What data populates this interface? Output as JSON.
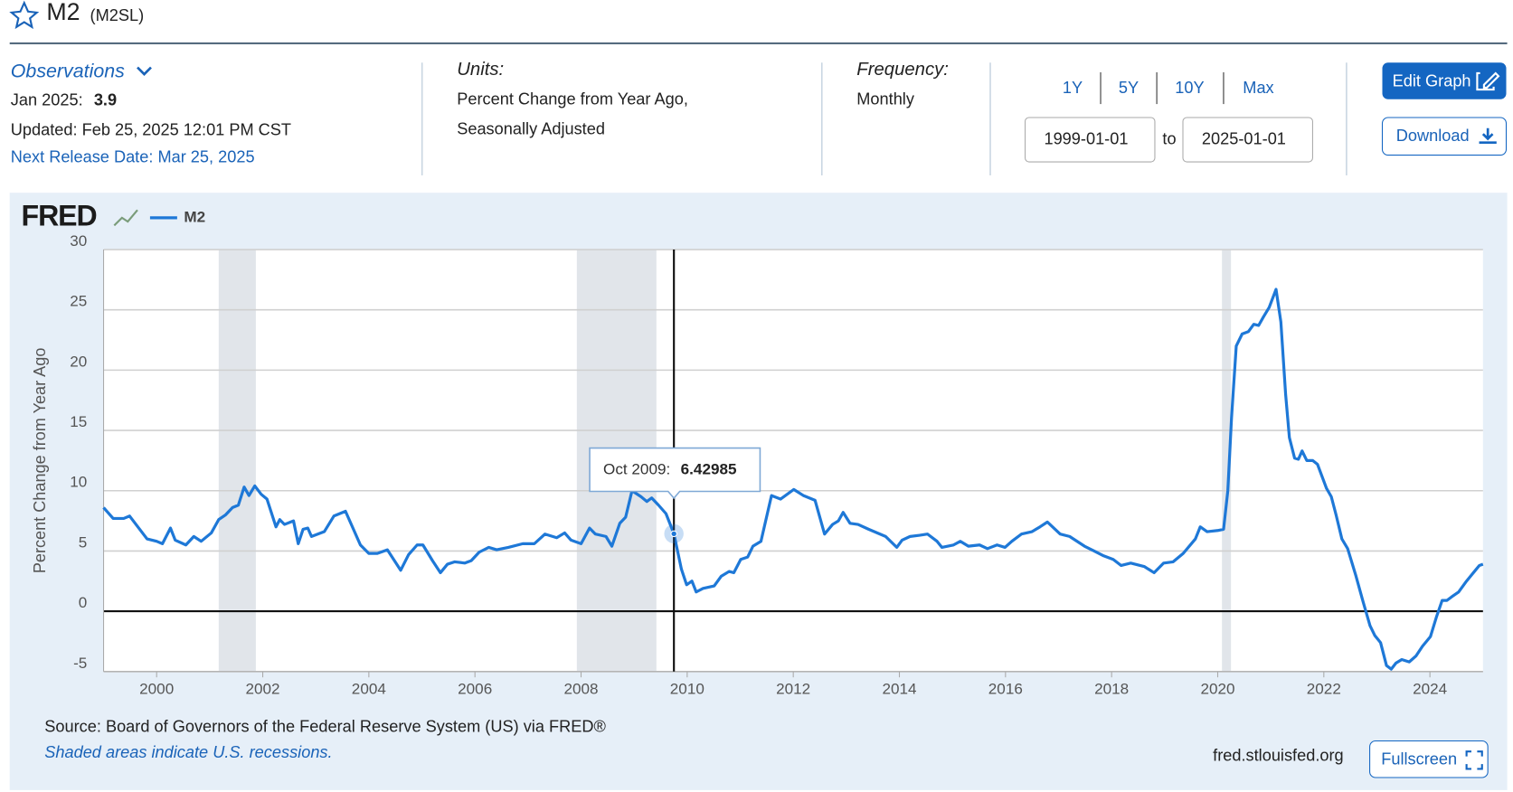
{
  "header": {
    "title": "M2",
    "series_id": "(M2SL)"
  },
  "observations": {
    "label": "Observations",
    "latest_date": "Jan 2025:",
    "latest_value": 3.9,
    "updated": "Updated: Feb 25, 2025 12:01 PM CST",
    "next_release": "Next Release Date: Mar 25, 2025"
  },
  "units": {
    "label": "Units:",
    "lines": [
      "Percent Change from Year Ago,",
      "Seasonally Adjusted"
    ]
  },
  "frequency": {
    "label": "Frequency:",
    "value": "Monthly"
  },
  "date_range": {
    "presets": [
      "1Y",
      "5Y",
      "10Y",
      "Max"
    ],
    "start": "1999-01-01",
    "separator": "to",
    "end": "2025-01-01"
  },
  "buttons": {
    "edit": "Edit Graph",
    "download": "Download",
    "fullscreen": "Fullscreen"
  },
  "chart_data": {
    "type": "line",
    "logo": "FRED",
    "y_label": "Percent Change from Year Ago",
    "xlim": [
      1999,
      2025
    ],
    "xticks": [
      2000,
      2002,
      2004,
      2006,
      2008,
      2010,
      2012,
      2014,
      2016,
      2018,
      2020,
      2022,
      2024
    ],
    "ylim": [
      -5,
      30
    ],
    "yticks": [
      30,
      25,
      20,
      15,
      10,
      5,
      0,
      -5
    ],
    "grid": true,
    "recessions": [
      [
        2001.17,
        2001.87
      ],
      [
        2007.92,
        2009.42
      ],
      [
        2020.08,
        2020.25
      ]
    ],
    "x": [
      1999.0,
      1999.18,
      1999.38,
      1999.49,
      1999.82,
      2000.0,
      2000.11,
      2000.26,
      2000.35,
      2000.55,
      2000.7,
      2000.84,
      2001.03,
      2001.17,
      2001.3,
      2001.43,
      2001.54,
      2001.65,
      2001.74,
      2001.85,
      2001.97,
      2002.08,
      2002.25,
      2002.32,
      2002.41,
      2002.58,
      2002.67,
      2002.76,
      2002.85,
      2002.92,
      2003.16,
      2003.34,
      2003.56,
      2003.84,
      2004.0,
      2004.16,
      2004.35,
      2004.6,
      2004.75,
      2004.91,
      2005.02,
      2005.2,
      2005.35,
      2005.48,
      2005.62,
      2005.81,
      2005.93,
      2006.08,
      2006.26,
      2006.41,
      2006.63,
      2006.9,
      2007.12,
      2007.32,
      2007.54,
      2007.69,
      2007.81,
      2008.0,
      2008.16,
      2008.27,
      2008.47,
      2008.58,
      2008.73,
      2008.84,
      2008.96,
      2009.13,
      2009.24,
      2009.33,
      2009.46,
      2009.6,
      2009.75,
      2009.89,
      2009.99,
      2010.09,
      2010.17,
      2010.3,
      2010.51,
      2010.64,
      2010.79,
      2010.88,
      2011.01,
      2011.14,
      2011.24,
      2011.39,
      2011.59,
      2011.76,
      2012.01,
      2012.19,
      2012.41,
      2012.59,
      2012.74,
      2012.85,
      2012.94,
      2013.07,
      2013.22,
      2013.42,
      2013.74,
      2013.95,
      2014.05,
      2014.2,
      2014.38,
      2014.53,
      2014.71,
      2014.8,
      2015.02,
      2015.15,
      2015.3,
      2015.51,
      2015.66,
      2015.84,
      2015.99,
      2016.12,
      2016.3,
      2016.5,
      2016.65,
      2016.79,
      2017.03,
      2017.21,
      2017.49,
      2017.67,
      2017.85,
      2018.03,
      2018.18,
      2018.36,
      2018.62,
      2018.8,
      2018.98,
      2019.16,
      2019.35,
      2019.58,
      2019.67,
      2019.8,
      2020.0,
      2020.11,
      2020.19,
      2020.26,
      2020.35,
      2020.46,
      2020.58,
      2020.68,
      2020.77,
      2020.86,
      2020.97,
      2021.1,
      2021.19,
      2021.28,
      2021.35,
      2021.45,
      2021.52,
      2021.59,
      2021.68,
      2021.79,
      2021.88,
      2022.05,
      2022.14,
      2022.23,
      2022.34,
      2022.45,
      2022.6,
      2022.74,
      2022.87,
      2022.96,
      2023.07,
      2023.18,
      2023.27,
      2023.36,
      2023.47,
      2023.61,
      2023.74,
      2023.86,
      2024.01,
      2024.12,
      2024.23,
      2024.32,
      2024.41,
      2024.54,
      2024.69,
      2024.82,
      2024.93,
      2025.0
    ],
    "series": [
      {
        "name": "M2",
        "color": "#1e78d7",
        "values": [
          8.6,
          7.7,
          7.7,
          7.9,
          6.0,
          5.8,
          5.6,
          6.9,
          5.9,
          5.5,
          6.2,
          5.8,
          6.5,
          7.6,
          8.0,
          8.6,
          8.8,
          10.3,
          9.6,
          10.4,
          9.7,
          9.3,
          7.0,
          7.6,
          7.2,
          7.5,
          5.6,
          6.8,
          6.9,
          6.2,
          6.6,
          7.9,
          8.3,
          5.5,
          4.8,
          4.8,
          5.1,
          3.4,
          4.7,
          5.5,
          5.5,
          4.2,
          3.2,
          3.9,
          4.1,
          4.0,
          4.2,
          4.9,
          5.3,
          5.1,
          5.3,
          5.6,
          5.6,
          6.4,
          6.1,
          6.5,
          5.9,
          5.6,
          6.9,
          6.4,
          6.2,
          5.4,
          7.3,
          7.8,
          10.0,
          9.5,
          9.1,
          9.4,
          8.8,
          8.1,
          6.42985,
          3.5,
          2.2,
          2.5,
          1.6,
          1.9,
          2.1,
          2.9,
          3.3,
          3.2,
          4.3,
          4.5,
          5.4,
          5.8,
          9.6,
          9.3,
          10.1,
          9.6,
          9.2,
          6.4,
          7.2,
          7.5,
          8.2,
          7.3,
          7.2,
          6.8,
          6.2,
          5.3,
          5.9,
          6.2,
          6.3,
          6.4,
          5.8,
          5.3,
          5.5,
          5.8,
          5.4,
          5.5,
          5.2,
          5.5,
          5.3,
          5.8,
          6.4,
          6.6,
          7.0,
          7.4,
          6.4,
          6.2,
          5.4,
          5.0,
          4.6,
          4.3,
          3.8,
          4.0,
          3.7,
          3.2,
          4.0,
          4.1,
          4.8,
          6.0,
          7.0,
          6.6,
          6.7,
          6.8,
          10.0,
          16.0,
          22.0,
          23.0,
          23.2,
          23.8,
          23.7,
          24.4,
          25.2,
          26.7,
          24.0,
          18.0,
          14.4,
          12.7,
          12.6,
          13.3,
          12.5,
          12.5,
          12.2,
          10.2,
          9.5,
          8.0,
          6.0,
          5.2,
          3.0,
          0.8,
          -1.2,
          -2.0,
          -2.6,
          -4.5,
          -4.8,
          -4.3,
          -4.0,
          -4.2,
          -3.7,
          -2.9,
          -2.1,
          -0.5,
          0.9,
          0.9,
          1.2,
          1.6,
          2.5,
          3.2,
          3.8,
          3.9
        ]
      }
    ],
    "tooltip": {
      "label": "Oct 2009:",
      "x": 2009.75
    },
    "source": "Source: Board of Governors of the Federal Reserve System (US) via FRED®",
    "note": "Shaded areas indicate U.S. recessions.",
    "url": "fred.stlouisfed.org"
  }
}
